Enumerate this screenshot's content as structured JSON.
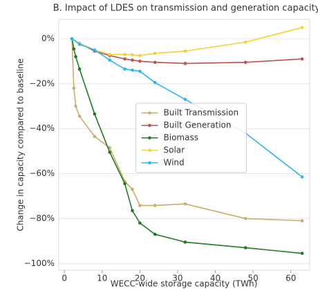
{
  "chart_data": {
    "type": "line",
    "title": "B. Impact of LDES on transmission and generation capacity",
    "x_label": "WECC-wide storage capacity (TWh)",
    "y_label": "Change in capacity compared to baseline",
    "xlim": [
      -1.5,
      65
    ],
    "xticks": [
      0,
      10,
      20,
      30,
      40,
      50,
      60
    ],
    "ylim": [
      -103,
      8.6
    ],
    "yticks": [
      {
        "value": 0,
        "label": "0%"
      },
      {
        "value": -20,
        "label": "−20%"
      },
      {
        "value": -40,
        "label": "−40%"
      },
      {
        "value": -60,
        "label": "−60%"
      },
      {
        "value": -80,
        "label": "−80%"
      },
      {
        "value": -100,
        "label": "−100%"
      }
    ],
    "grid": true,
    "legend_loc": "center",
    "series": [
      {
        "name": "Built Transmission",
        "color": "#c9ad6a",
        "x": [
          2,
          2.5,
          3,
          4,
          8,
          12,
          16,
          18,
          20,
          24,
          32,
          48,
          63
        ],
        "values": [
          0,
          -22,
          -30,
          -34.5,
          -43.5,
          -48.5,
          -63.5,
          -67,
          -74.2,
          -74.2,
          -73.5,
          -80,
          -81
        ]
      },
      {
        "name": "Built Generation",
        "color": "#c0504d",
        "x": [
          2,
          4,
          8,
          12,
          16,
          18,
          20,
          24,
          32,
          48,
          63
        ],
        "values": [
          0,
          -2,
          -5.5,
          -7.5,
          -9,
          -9.5,
          -10,
          -10.5,
          -11,
          -10.5,
          -9
        ]
      },
      {
        "name": "Biomass",
        "color": "#1e7b1e",
        "x": [
          2,
          2.5,
          3,
          4,
          8,
          12,
          16,
          18,
          20,
          24,
          32,
          48,
          63
        ],
        "values": [
          0,
          -4.5,
          -8,
          -13.5,
          -33.5,
          -50.5,
          -64.5,
          -76.5,
          -82,
          -87,
          -90.5,
          -93,
          -95.5
        ]
      },
      {
        "name": "Solar",
        "color": "#f5d130",
        "x": [
          2,
          4,
          8,
          12,
          16,
          18,
          20,
          24,
          32,
          48,
          63
        ],
        "values": [
          0,
          -2,
          -5,
          -7,
          -7,
          -7.2,
          -7.5,
          -6.5,
          -5.5,
          -1.5,
          5
        ]
      },
      {
        "name": "Wind",
        "color": "#29b6f6",
        "x": [
          2,
          4,
          8,
          12,
          16,
          18,
          20,
          24,
          32,
          48,
          63
        ],
        "values": [
          0,
          -2.5,
          -5,
          -9.5,
          -13.5,
          -14,
          -14.5,
          -19.5,
          -27,
          -42,
          -61.5
        ]
      }
    ]
  }
}
